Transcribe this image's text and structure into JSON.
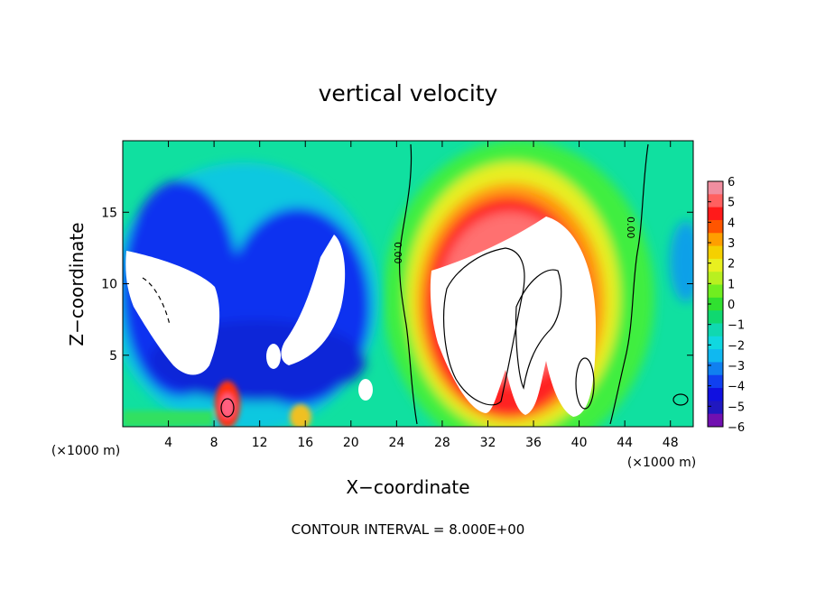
{
  "chart_data": {
    "type": "heatmap",
    "title": "vertical velocity",
    "xlabel": "X−coordinate",
    "ylabel": "Z−coordinate",
    "x_units": "(×1000 m)",
    "xlim": [
      0,
      50
    ],
    "ylim": [
      0,
      20
    ],
    "x_ticks": [
      "4",
      "8",
      "12",
      "16",
      "20",
      "24",
      "28",
      "32",
      "36",
      "40",
      "44",
      "48"
    ],
    "y_ticks": [
      "5",
      "10",
      "15"
    ],
    "colorbar_ticks": [
      "6",
      "5",
      "4",
      "3",
      "2",
      "1",
      "0",
      "−1",
      "−2",
      "−3",
      "−4",
      "−5",
      "−6"
    ],
    "colorbar_range": [
      -6,
      6
    ],
    "contour_zero_label": "0.00",
    "footer": "CONTOUR INTERVAL = 8.000E+00",
    "regions": [
      {
        "kind": "background",
        "value": -0.6
      },
      {
        "kind": "updraft",
        "x_center": 34,
        "z_top": 16.5,
        "peak": 6,
        "saturated": true
      },
      {
        "kind": "downdraft",
        "x_range": [
          1,
          22
        ],
        "z_top": 17,
        "peak": -6,
        "saturated": true
      },
      {
        "kind": "pocket",
        "x": 9.5,
        "z": 1.5,
        "value": 5.5
      },
      {
        "kind": "pocket",
        "x": 15.5,
        "z": 1,
        "value": 3
      }
    ]
  }
}
